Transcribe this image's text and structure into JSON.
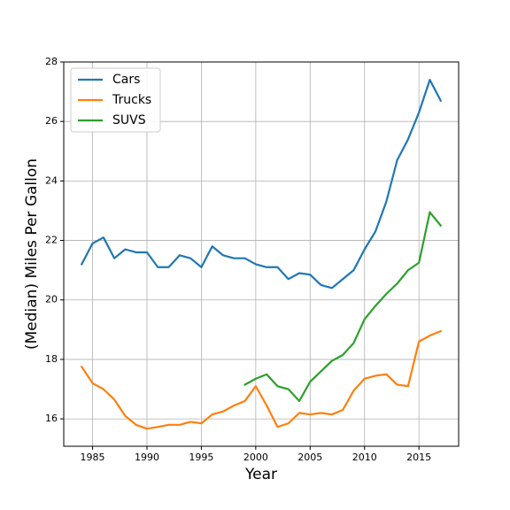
{
  "chart_data": {
    "type": "line",
    "x_label": "Year",
    "y_label": "(Median) Miles Per Gallon",
    "x": [
      1984,
      1985,
      1986,
      1987,
      1988,
      1989,
      1990,
      1991,
      1992,
      1993,
      1994,
      1995,
      1996,
      1997,
      1998,
      1999,
      2000,
      2001,
      2002,
      2003,
      2004,
      2005,
      2006,
      2007,
      2008,
      2009,
      2010,
      2011,
      2012,
      2013,
      2014,
      2015,
      2016,
      2017
    ],
    "series": [
      {
        "name": "Cars",
        "color": "#1f77b4",
        "values": [
          21.2,
          21.9,
          22.1,
          21.4,
          21.7,
          21.6,
          21.6,
          21.1,
          21.1,
          21.5,
          21.4,
          21.1,
          21.8,
          21.5,
          21.4,
          21.4,
          21.2,
          21.1,
          21.1,
          20.7,
          20.9,
          20.85,
          20.5,
          20.4,
          20.7,
          21.0,
          21.7,
          22.3,
          23.3,
          24.7,
          25.4,
          26.3,
          27.4,
          26.7
        ]
      },
      {
        "name": "Trucks",
        "color": "#ff7f0e",
        "values": [
          17.75,
          17.2,
          17.0,
          16.65,
          16.1,
          15.8,
          15.67,
          15.73,
          15.8,
          15.8,
          15.9,
          15.85,
          16.15,
          16.25,
          16.45,
          16.6,
          17.1,
          16.45,
          15.73,
          15.85,
          16.2,
          16.15,
          16.2,
          16.15,
          16.3,
          16.95,
          17.35,
          17.45,
          17.5,
          17.15,
          17.1,
          18.6,
          18.8,
          18.95
        ]
      },
      {
        "name": "SUVS",
        "color": "#2ca02c",
        "values": [
          null,
          null,
          null,
          null,
          null,
          null,
          null,
          null,
          null,
          null,
          null,
          null,
          null,
          null,
          null,
          17.15,
          17.35,
          17.5,
          17.1,
          17.0,
          16.6,
          17.25,
          17.6,
          17.95,
          18.15,
          18.55,
          19.35,
          19.8,
          20.2,
          20.55,
          21.0,
          21.25,
          22.95,
          22.5
        ]
      }
    ],
    "xlim": [
      1982.35,
      2018.65
    ],
    "xticks": [
      1985,
      1990,
      1995,
      2000,
      2005,
      2010,
      2015
    ],
    "ylim": [
      15.08,
      28
    ],
    "yticks": [
      16,
      18,
      20,
      22,
      24,
      26,
      28
    ],
    "grid": true,
    "legend": "upper-left"
  }
}
